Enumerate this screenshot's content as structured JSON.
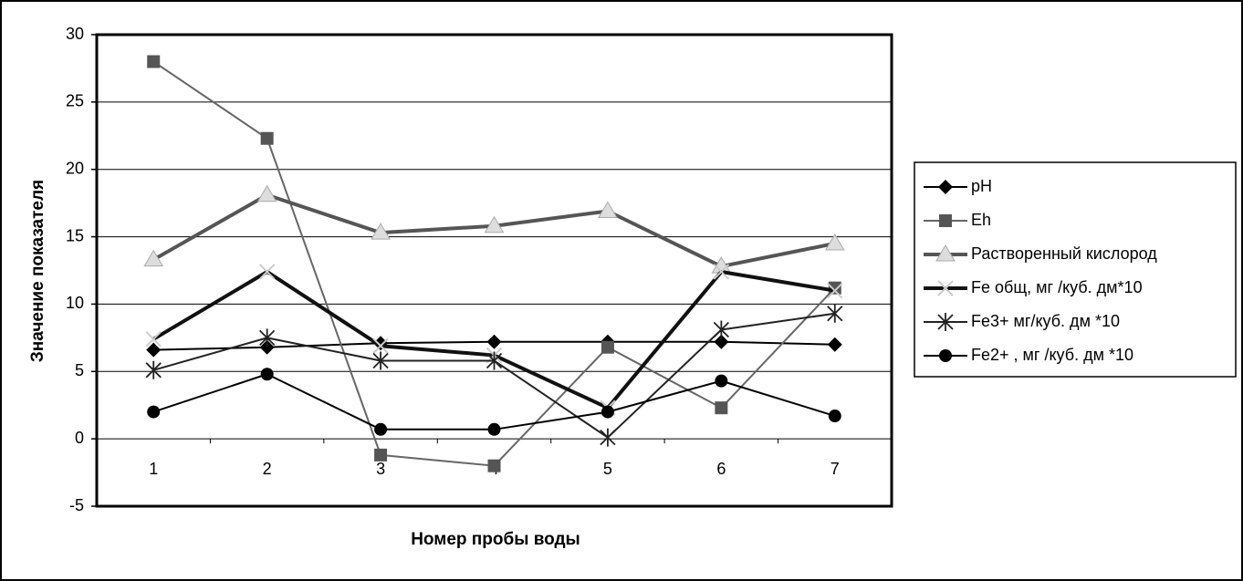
{
  "chart_data": {
    "type": "line",
    "x_label": "Номер пробы воды",
    "y_label": "Значение показателя",
    "categories": [
      "1",
      "2",
      "3",
      "4",
      "5",
      "6",
      "7"
    ],
    "ylim": [
      -5,
      30
    ],
    "yticks": [
      -5,
      0,
      5,
      10,
      15,
      20,
      25,
      30
    ],
    "grid": true,
    "legend": "right",
    "series": [
      {
        "name": "pH",
        "color": "#000000",
        "marker": "diamond",
        "marker_color": "#000000",
        "line_width": 2,
        "values": [
          6.6,
          6.8,
          7.1,
          7.2,
          7.2,
          7.2,
          7.0
        ]
      },
      {
        "name": "Eh",
        "color": "#666666",
        "marker": "square",
        "marker_color": "#555555",
        "line_width": 2,
        "values": [
          28,
          22.3,
          -1.2,
          -2,
          6.8,
          2.3,
          11.2
        ]
      },
      {
        "name": "Растворенный кислород",
        "color": "#555555",
        "marker": "triangle",
        "marker_color": "#dddddd",
        "line_width": 4,
        "values": [
          13.3,
          18.1,
          15.3,
          15.8,
          16.9,
          12.8,
          14.5
        ]
      },
      {
        "name": "Fe общ, мг /куб. дм*10",
        "color": "#111111",
        "marker": "x",
        "marker_color": "#cccccc",
        "line_width": 4,
        "values": [
          7.4,
          12.4,
          6.9,
          6.2,
          2.3,
          12.4,
          11.0
        ]
      },
      {
        "name": "Fe3+ мг/куб. дм *10",
        "color": "#222222",
        "marker": "star",
        "marker_color": "#222222",
        "line_width": 2,
        "values": [
          5.1,
          7.5,
          5.8,
          5.8,
          0.1,
          8.1,
          9.3
        ]
      },
      {
        "name": "Fe2+ , мг /куб. дм *10",
        "color": "#000000",
        "marker": "circle",
        "marker_color": "#000000",
        "line_width": 2,
        "values": [
          2.0,
          4.8,
          0.7,
          0.7,
          2.0,
          4.3,
          1.7
        ]
      }
    ]
  }
}
